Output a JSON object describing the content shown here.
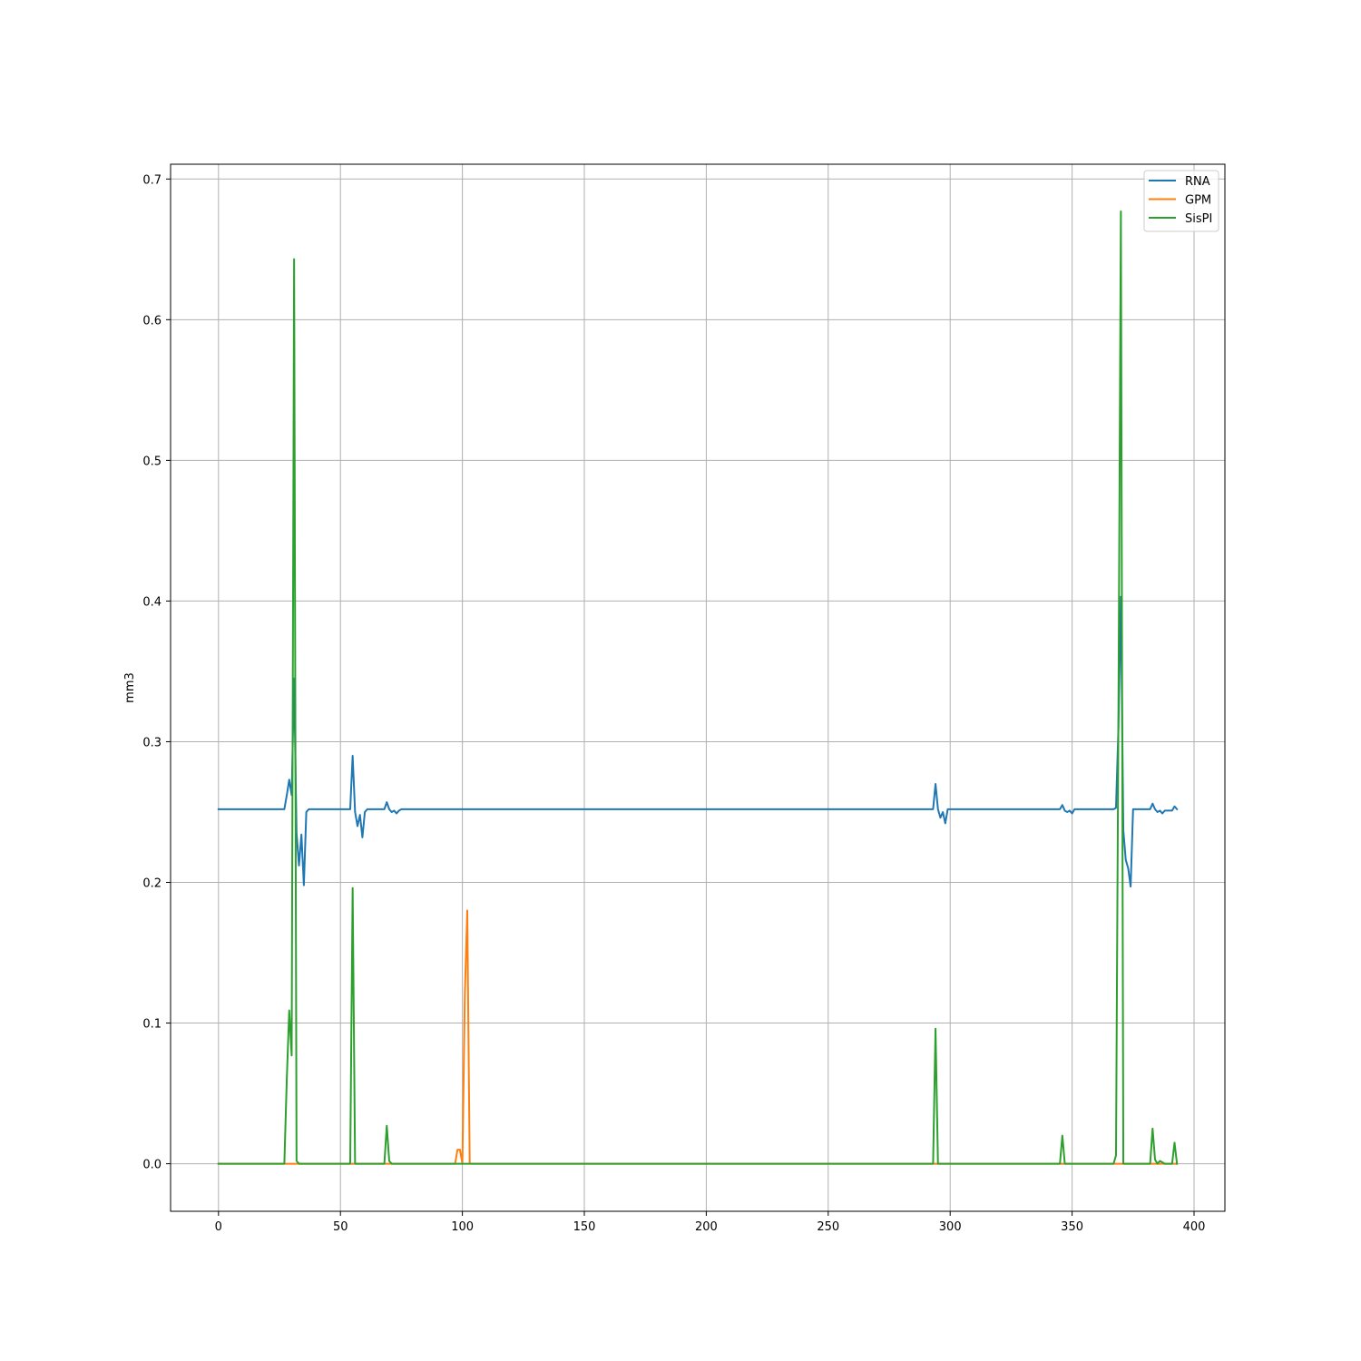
{
  "chart_data": {
    "type": "line",
    "title": "",
    "xlabel": "",
    "ylabel": "mm3",
    "xlim": [
      -19.65,
      412.65
    ],
    "ylim": [
      -0.0338,
      0.7105
    ],
    "xticks": [
      0,
      50,
      100,
      150,
      200,
      250,
      300,
      350,
      400
    ],
    "yticks": [
      0.0,
      0.1,
      0.2,
      0.3,
      0.4,
      0.5,
      0.6,
      0.7
    ],
    "xtick_labels": [
      "0",
      "50",
      "100",
      "150",
      "200",
      "250",
      "300",
      "350",
      "400"
    ],
    "ytick_labels": [
      "0.0",
      "0.1",
      "0.2",
      "0.3",
      "0.4",
      "0.5",
      "0.6",
      "0.7"
    ],
    "grid": true,
    "legend_position": "top-right",
    "series": [
      {
        "name": "RNA",
        "color": "#1f77b4",
        "points": [
          [
            0,
            0.252
          ],
          [
            27,
            0.252
          ],
          [
            28,
            0.262
          ],
          [
            29,
            0.273
          ],
          [
            30,
            0.262
          ],
          [
            31,
            0.345
          ],
          [
            32,
            0.235
          ],
          [
            33,
            0.212
          ],
          [
            34,
            0.234
          ],
          [
            35,
            0.198
          ],
          [
            36,
            0.25
          ],
          [
            37,
            0.252
          ],
          [
            54,
            0.252
          ],
          [
            55,
            0.29
          ],
          [
            56,
            0.25
          ],
          [
            57,
            0.24
          ],
          [
            58,
            0.248
          ],
          [
            59,
            0.232
          ],
          [
            60,
            0.25
          ],
          [
            61,
            0.252
          ],
          [
            68,
            0.252
          ],
          [
            69,
            0.257
          ],
          [
            70,
            0.252
          ],
          [
            71,
            0.25
          ],
          [
            72,
            0.251
          ],
          [
            73,
            0.249
          ],
          [
            74,
            0.251
          ],
          [
            75,
            0.252
          ],
          [
            293,
            0.252
          ],
          [
            294,
            0.27
          ],
          [
            295,
            0.252
          ],
          [
            296,
            0.246
          ],
          [
            297,
            0.25
          ],
          [
            298,
            0.242
          ],
          [
            299,
            0.252
          ],
          [
            345,
            0.252
          ],
          [
            346,
            0.255
          ],
          [
            347,
            0.251
          ],
          [
            348,
            0.25
          ],
          [
            349,
            0.251
          ],
          [
            350,
            0.249
          ],
          [
            351,
            0.252
          ],
          [
            367,
            0.252
          ],
          [
            368,
            0.253
          ],
          [
            369,
            0.31
          ],
          [
            370,
            0.403
          ],
          [
            371,
            0.237
          ],
          [
            372,
            0.216
          ],
          [
            373,
            0.21
          ],
          [
            374,
            0.197
          ],
          [
            375,
            0.252
          ],
          [
            382,
            0.252
          ],
          [
            383,
            0.256
          ],
          [
            384,
            0.252
          ],
          [
            385,
            0.25
          ],
          [
            386,
            0.251
          ],
          [
            387,
            0.249
          ],
          [
            388,
            0.251
          ],
          [
            391,
            0.251
          ],
          [
            392,
            0.254
          ],
          [
            393,
            0.252
          ]
        ]
      },
      {
        "name": "GPM",
        "color": "#ff7f0e",
        "points": [
          [
            0,
            0
          ],
          [
            97,
            0
          ],
          [
            98,
            0.01
          ],
          [
            99,
            0.01
          ],
          [
            100,
            0
          ],
          [
            101,
            0.12
          ],
          [
            102,
            0.18
          ],
          [
            103,
            0
          ],
          [
            393,
            0
          ]
        ]
      },
      {
        "name": "SisPI",
        "color": "#2ca02c",
        "points": [
          [
            0,
            0
          ],
          [
            27,
            0
          ],
          [
            28,
            0.06
          ],
          [
            29,
            0.109
          ],
          [
            30,
            0.077
          ],
          [
            31,
            0.643
          ],
          [
            32,
            0.002
          ],
          [
            33,
            0
          ],
          [
            54,
            0
          ],
          [
            55,
            0.196
          ],
          [
            56,
            0
          ],
          [
            68,
            0
          ],
          [
            69,
            0.027
          ],
          [
            70,
            0.002
          ],
          [
            71,
            0
          ],
          [
            293,
            0
          ],
          [
            294,
            0.096
          ],
          [
            295,
            0
          ],
          [
            345,
            0
          ],
          [
            346,
            0.02
          ],
          [
            347,
            0
          ],
          [
            367,
            0
          ],
          [
            368,
            0.006
          ],
          [
            369,
            0.32
          ],
          [
            370,
            0.677
          ],
          [
            371,
            0
          ],
          [
            382,
            0
          ],
          [
            383,
            0.025
          ],
          [
            384,
            0.003
          ],
          [
            385,
            0
          ],
          [
            386,
            0.002
          ],
          [
            387,
            0.001
          ],
          [
            388,
            0
          ],
          [
            391,
            0
          ],
          [
            392,
            0.015
          ],
          [
            393,
            0
          ]
        ]
      }
    ]
  }
}
